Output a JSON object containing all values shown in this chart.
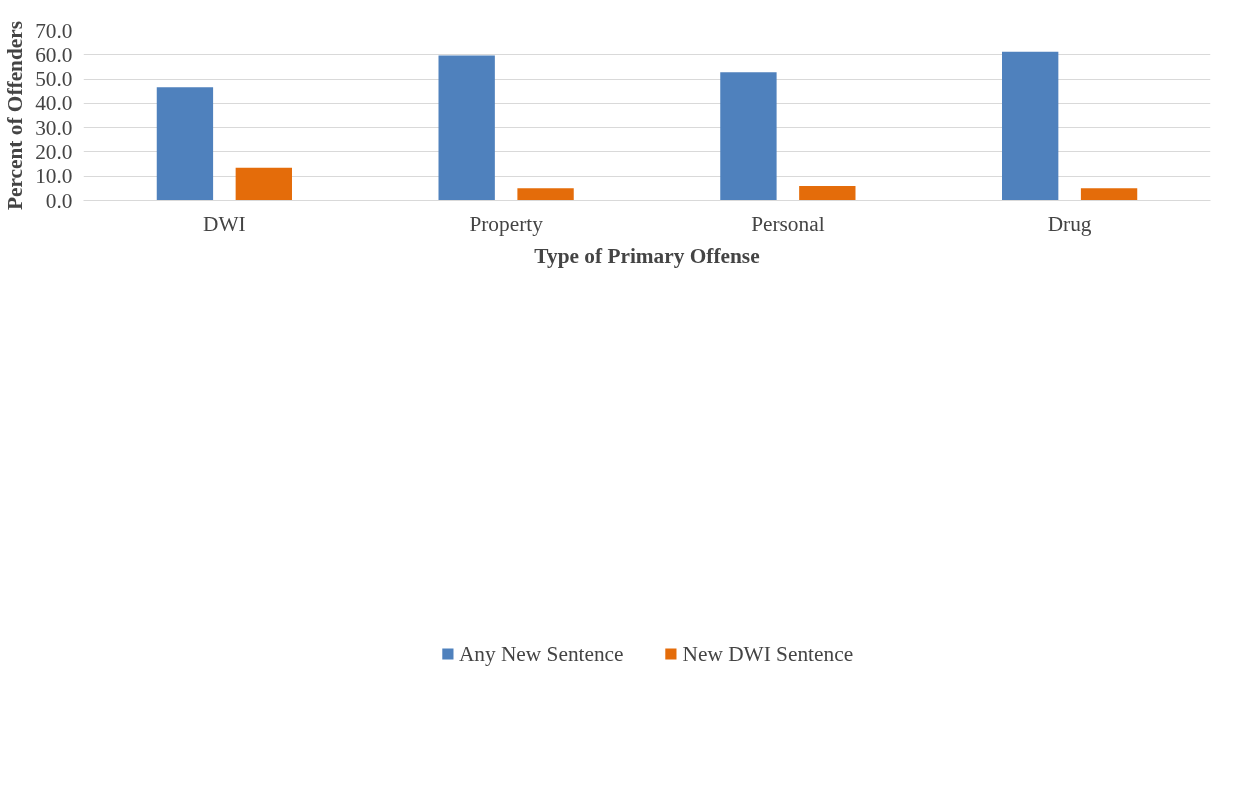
{
  "chart_data": {
    "type": "bar",
    "xlabel": "Type of Primary Offense",
    "ylabel": "Percent of Offenders",
    "categories": [
      "DWI",
      "Property",
      "Personal",
      "Drug"
    ],
    "series": [
      {
        "name": "Any New Sentence",
        "color": "#4f81bd",
        "values": [
          46.6,
          59.7,
          52.8,
          61.3
        ]
      },
      {
        "name": "New DWI Sentence",
        "color": "#e46c0a",
        "values": [
          13.5,
          5.0,
          6.0,
          5.0
        ]
      }
    ],
    "ylim": [
      0,
      70
    ],
    "yticks": [
      {
        "value": 0,
        "label": "0.0"
      },
      {
        "value": 10,
        "label": "10.0"
      },
      {
        "value": 20,
        "label": "20.0"
      },
      {
        "value": 30,
        "label": "30.0"
      },
      {
        "value": 40,
        "label": "40.0"
      },
      {
        "value": 50,
        "label": "50.0"
      },
      {
        "value": 60,
        "label": "60.0"
      },
      {
        "value": 70,
        "label": "70.0"
      }
    ],
    "grid": "y",
    "legend": "bottom"
  }
}
